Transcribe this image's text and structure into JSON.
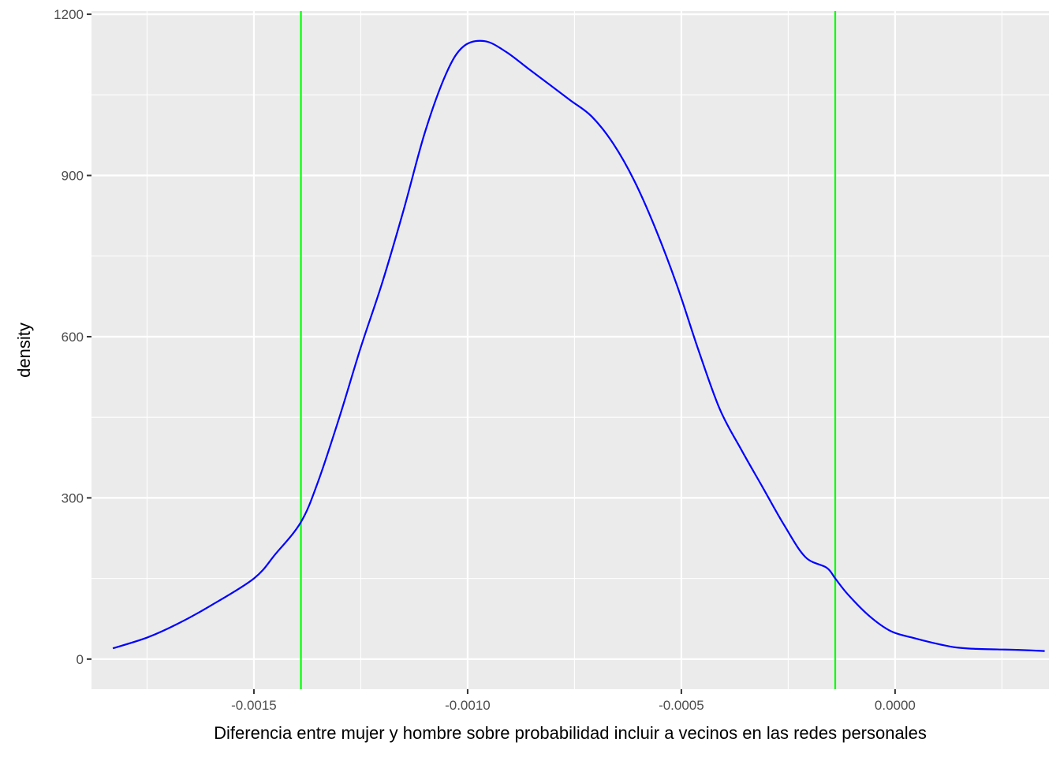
{
  "chart_data": {
    "type": "line",
    "title": "",
    "xlabel": "Diferencia entre mujer y hombre sobre probabilidad incluir a vecinos en las redes personales",
    "ylabel": "density",
    "xlim": [
      -0.00188,
      0.00036
    ],
    "ylim": [
      -56,
      1206
    ],
    "x_ticks": [
      -0.0015,
      -0.001,
      -0.0005,
      0.0
    ],
    "x_tick_labels": [
      "-0.0015",
      "-0.0010",
      "-0.0005",
      "0.0000"
    ],
    "y_ticks": [
      0,
      300,
      600,
      900,
      1200
    ],
    "y_tick_labels": [
      "0",
      "300",
      "600",
      "900",
      "1200"
    ],
    "grid": true,
    "background": "#ebebeb",
    "series": [
      {
        "color": "#0000ff",
        "x": [
          -0.00183,
          -0.00175,
          -0.00168,
          -0.0016,
          -0.0015,
          -0.00145,
          -0.00139,
          -0.00135,
          -0.0013,
          -0.00125,
          -0.0012,
          -0.00115,
          -0.0011,
          -0.00105,
          -0.00101,
          -0.00096,
          -0.00091,
          -0.00086,
          -0.00081,
          -0.00076,
          -0.00071,
          -0.00066,
          -0.00061,
          -0.00056,
          -0.00051,
          -0.00046,
          -0.00041,
          -0.00036,
          -0.00031,
          -0.00026,
          -0.00021,
          -0.00016,
          -0.00014,
          -0.00011,
          -6e-05,
          -1e-05,
          4e-05,
          9e-05,
          0.00014,
          0.00019,
          0.00024,
          0.00029,
          0.00035
        ],
        "y": [
          20,
          40,
          65,
          100,
          150,
          195,
          255,
          330,
          450,
          580,
          700,
          835,
          980,
          1090,
          1140,
          1150,
          1130,
          1100,
          1070,
          1040,
          1010,
          960,
          890,
          800,
          695,
          575,
          465,
          390,
          320,
          250,
          190,
          170,
          150,
          120,
          80,
          52,
          40,
          30,
          22,
          19,
          18,
          17,
          15
        ]
      }
    ],
    "vlines": [
      {
        "x": -0.00139,
        "color": "#00ff00"
      },
      {
        "x": -0.00014,
        "color": "#00ff00"
      }
    ]
  }
}
